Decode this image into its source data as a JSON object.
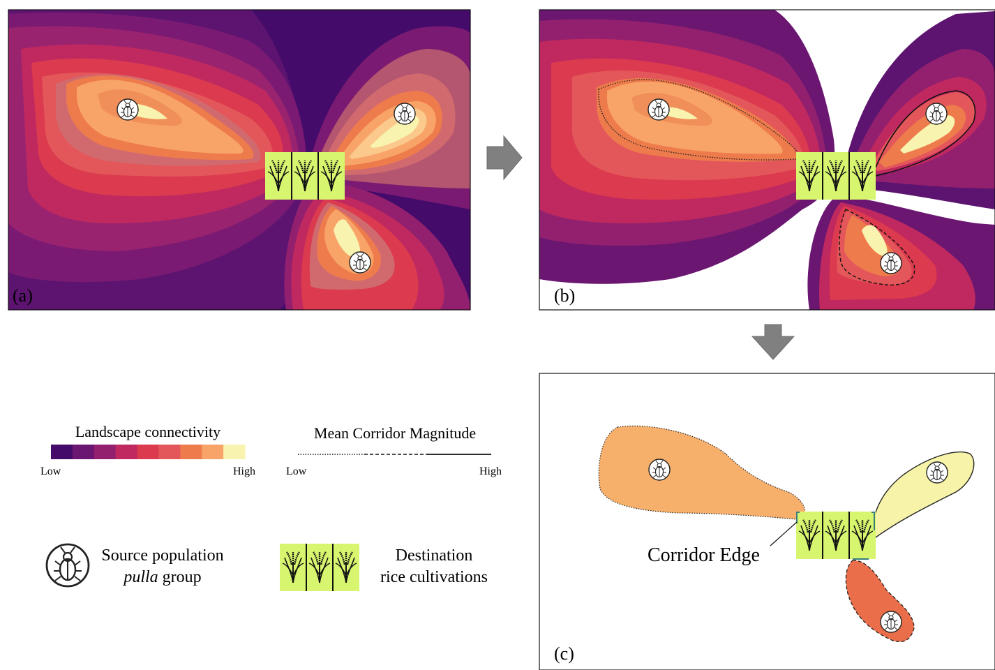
{
  "panels": {
    "a": {
      "label": "(a)"
    },
    "b": {
      "label": "(b)"
    },
    "c": {
      "label": "(c)",
      "corridor_edge_label": "Corridor Edge"
    }
  },
  "legend": {
    "connectivity": {
      "title": "Landscape connectivity",
      "low": "Low",
      "high": "High",
      "colors": [
        "#440b6b",
        "#6b1772",
        "#93206e",
        "#c0295f",
        "#dc3a4e",
        "#e3575a",
        "#ee7b4c",
        "#f8a468",
        "#f9f3b0"
      ]
    },
    "corridor": {
      "title": "Mean Corridor Magnitude",
      "low": "Low",
      "high": "High"
    },
    "source": {
      "line1": "Source population",
      "line2_italic": "pulla",
      "line2_rest": " group"
    },
    "destination": {
      "line1": "Destination",
      "line2": "rice cultivations"
    }
  },
  "icons": {
    "source": "beetle-icon",
    "destination": "rice-plant-icon",
    "flow_arrow": "arrow-icon"
  }
}
